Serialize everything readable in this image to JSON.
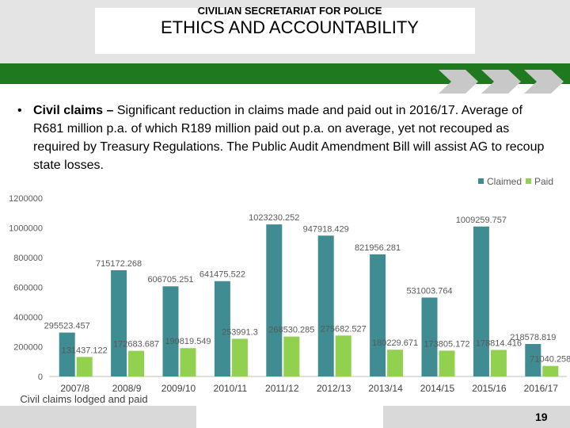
{
  "slide": {
    "title": "ETHICS AND ACCOUNTABILITY",
    "bullet_char": "•",
    "bullet_bold": "Civil claims – ",
    "bullet_text": "Significant reduction in claims made and paid out in 2016/17. Average of R681 million p.a. of which R189 million paid out p.a. on average, yet not recouped as required by Treasury Regulations. The Public Audit Amendment Bill will assist AG to recoup state losses.",
    "footer": "CIVILIAN SECRETARIAT FOR POLICE",
    "page_number": "19"
  },
  "colors": {
    "header_band": "#e4e4e4",
    "green_band": "#1f7a1f",
    "claimed": "#3f8c92",
    "paid": "#92d050"
  },
  "icons": [
    "chevron-right-icon",
    "chevron-right-icon",
    "chevron-right-icon"
  ],
  "chart_data": {
    "type": "bar",
    "title": "",
    "xlabel": "Civil claims lodged and paid",
    "ylabel": "",
    "categories": [
      "2007/8",
      "2008/9",
      "2009/10",
      "2010/11",
      "2011/12",
      "2012/13",
      "2013/14",
      "2014/15",
      "2015/16",
      "2016/17"
    ],
    "series": [
      {
        "name": "Claimed",
        "values": [
          295523.457,
          715172.268,
          606705.251,
          641475.522,
          1023230.252,
          947918.429,
          821956.281,
          531003.764,
          1009259.757,
          218578.819
        ],
        "labels": [
          "295523.457",
          "715172.268",
          "606705.251",
          "641475.522",
          "1023230.252",
          "947918.429",
          "821956.281",
          "531003.764",
          "1009259.757",
          "218578.819"
        ]
      },
      {
        "name": "Paid",
        "values": [
          131437.122,
          172683.687,
          190819.549,
          253991.3,
          268530.285,
          275682.527,
          180229.671,
          173805.172,
          178814.416,
          71040.258
        ],
        "labels": [
          "131437.122",
          "172683.687",
          "190819.549",
          "253991.3",
          "268530.285",
          "275682.527",
          "180229.671",
          "173805.172",
          "178814.416",
          "71040.258"
        ]
      }
    ],
    "ylim": [
      0,
      1200000
    ],
    "yticks": [
      "0",
      "200000",
      "400000",
      "600000",
      "800000",
      "1000000",
      "1200000"
    ],
    "legend": "top-right",
    "grid": false
  }
}
